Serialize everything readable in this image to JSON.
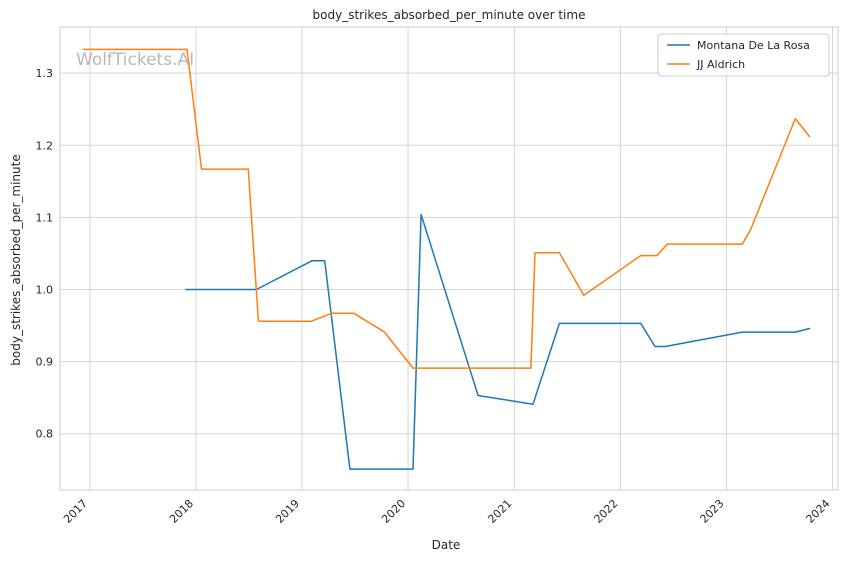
{
  "chart_data": {
    "type": "line",
    "title": "body_strikes_absorbed_per_minute over time",
    "xlabel": "Date",
    "ylabel": "body_strikes_absorbed_per_minute",
    "watermark": "WolfTickets.AI",
    "x_ticks": [
      "2017",
      "2018",
      "2019",
      "2020",
      "2021",
      "2022",
      "2023",
      "2024"
    ],
    "y_ticks": [
      "0.8",
      "0.9",
      "1.0",
      "1.1",
      "1.2",
      "1.3"
    ],
    "xlim": [
      "2016-09-20",
      "2024-01-20"
    ],
    "ylim": [
      0.722,
      1.364
    ],
    "grid": true,
    "legend_position": "top-right",
    "series": [
      {
        "name": "Montana De La Rosa",
        "color": "#1f77b4",
        "points": [
          {
            "x": "2017-11-28",
            "y": 1.0
          },
          {
            "x": "2018-07-28",
            "y": 1.0
          },
          {
            "x": "2019-02-05",
            "y": 1.04
          },
          {
            "x": "2019-03-20",
            "y": 1.04
          },
          {
            "x": "2019-06-15",
            "y": 0.751
          },
          {
            "x": "2020-01-18",
            "y": 0.751
          },
          {
            "x": "2020-02-15",
            "y": 1.104
          },
          {
            "x": "2020-08-29",
            "y": 0.853
          },
          {
            "x": "2021-03-06",
            "y": 0.841
          },
          {
            "x": "2021-06-05",
            "y": 0.953
          },
          {
            "x": "2022-03-12",
            "y": 0.953
          },
          {
            "x": "2022-04-30",
            "y": 0.921
          },
          {
            "x": "2022-06-04",
            "y": 0.921
          },
          {
            "x": "2023-02-25",
            "y": 0.941
          },
          {
            "x": "2023-08-26",
            "y": 0.941
          },
          {
            "x": "2023-10-14",
            "y": 0.946
          }
        ]
      },
      {
        "name": "JJ Aldrich",
        "color": "#ff7f0e",
        "points": [
          {
            "x": "2016-12-10",
            "y": 1.333
          },
          {
            "x": "2017-12-01",
            "y": 1.333
          },
          {
            "x": "2018-01-20",
            "y": 1.167
          },
          {
            "x": "2018-06-30",
            "y": 1.167
          },
          {
            "x": "2018-08-04",
            "y": 0.956
          },
          {
            "x": "2019-02-02",
            "y": 0.956
          },
          {
            "x": "2019-04-13",
            "y": 0.967
          },
          {
            "x": "2019-06-29",
            "y": 0.967
          },
          {
            "x": "2019-10-12",
            "y": 0.941
          },
          {
            "x": "2020-01-18",
            "y": 0.891
          },
          {
            "x": "2021-02-27",
            "y": 0.891
          },
          {
            "x": "2021-03-13",
            "y": 1.051
          },
          {
            "x": "2021-06-05",
            "y": 1.051
          },
          {
            "x": "2021-08-28",
            "y": 0.992
          },
          {
            "x": "2022-03-12",
            "y": 1.047
          },
          {
            "x": "2022-05-07",
            "y": 1.047
          },
          {
            "x": "2022-06-11",
            "y": 1.063
          },
          {
            "x": "2023-02-25",
            "y": 1.063
          },
          {
            "x": "2023-03-25",
            "y": 1.083
          },
          {
            "x": "2023-08-26",
            "y": 1.237
          },
          {
            "x": "2023-10-14",
            "y": 1.212
          }
        ]
      }
    ]
  }
}
